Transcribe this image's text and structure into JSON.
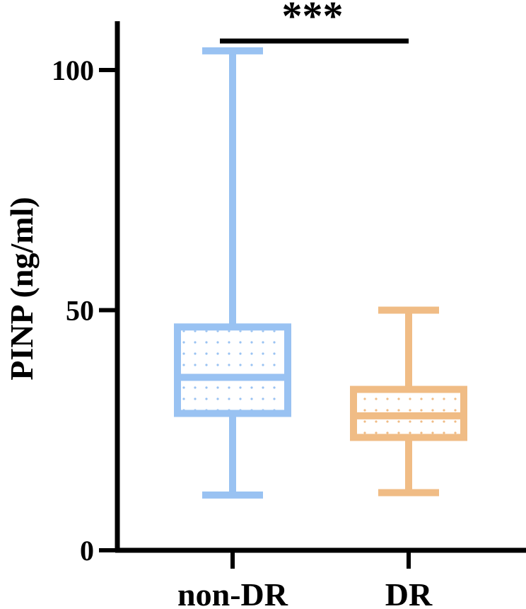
{
  "chart_data": {
    "type": "box",
    "title": "",
    "xlabel": "",
    "ylabel": "PINP (ng/ml)",
    "ylim": [
      0,
      110
    ],
    "yticks": [
      0,
      50,
      100
    ],
    "categories": [
      "non-DR",
      "DR"
    ],
    "series": [
      {
        "category": "non-DR",
        "min": 11.5,
        "q1": 28.5,
        "median": 36,
        "q3": 46.5,
        "max": 104,
        "color": "#99c2f2"
      },
      {
        "category": "DR",
        "min": 12,
        "q1": 23.5,
        "median": 28,
        "q3": 33.5,
        "max": 50,
        "color": "#f0bc85"
      }
    ],
    "significance": {
      "label": "***",
      "between": [
        "non-DR",
        "DR"
      ]
    },
    "grid": false,
    "legend": "none"
  }
}
